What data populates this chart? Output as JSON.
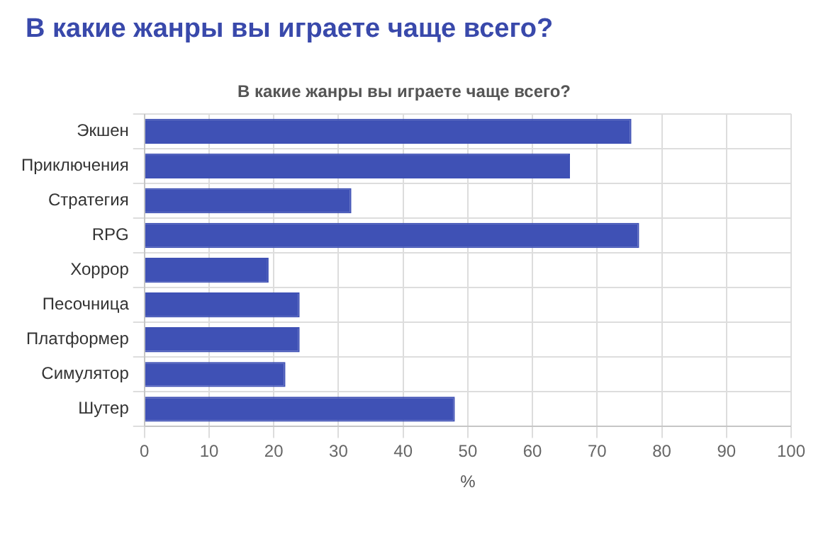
{
  "chart_data": {
    "type": "bar",
    "orientation": "horizontal",
    "title": "В какие жанры вы играете чаще всего?",
    "subtitle": "В какие жанры вы играете чаще всего?",
    "xlabel": "%",
    "categories": [
      "Экшен",
      "Приключения",
      "Стратегия",
      "RPG",
      "Хоррор",
      "Песочница",
      "Платформер",
      "Симулятор",
      "Шутер"
    ],
    "values": [
      75.3,
      65.8,
      32.0,
      76.5,
      19.2,
      24.0,
      24.0,
      21.8,
      48.0
    ],
    "color": "#3f51b5",
    "xlim": [
      0,
      100
    ],
    "xticks": [
      0,
      10,
      20,
      30,
      40,
      50,
      60,
      70,
      80,
      90,
      100
    ],
    "grid": true,
    "legend": false
  }
}
